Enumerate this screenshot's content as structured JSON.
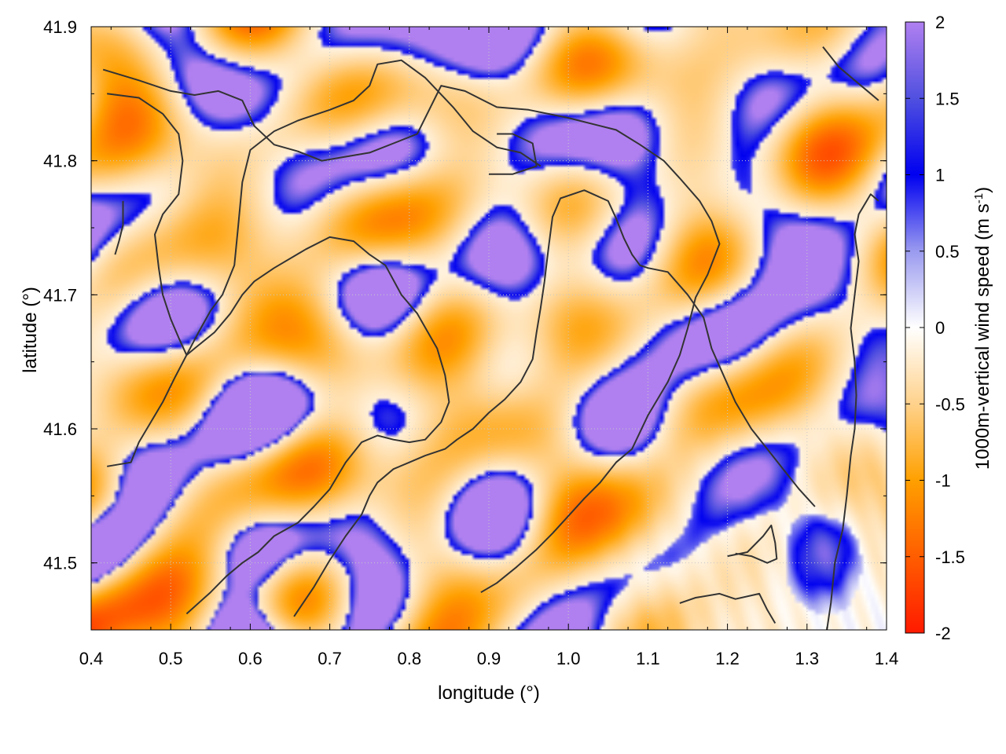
{
  "chart_data": {
    "type": "heatmap",
    "xlabel": "longitude (°)",
    "ylabel": "latitude (°)",
    "colorbar_label": "1000m-vertical wind speed (m s-1)",
    "colorbar_label_parts": {
      "main": "1000m-vertical wind speed (m s",
      "sup": "-1",
      "close": ")"
    },
    "xlim": [
      0.4,
      1.4
    ],
    "ylim": [
      41.45,
      41.9
    ],
    "clim": [
      -2,
      2
    ],
    "x_ticks": [
      "0.4",
      "0.5",
      "0.6",
      "0.7",
      "0.8",
      "0.9",
      "1.0",
      "1.1",
      "1.2",
      "1.3",
      "1.4"
    ],
    "y_ticks": [
      "41.5",
      "41.6",
      "41.7",
      "41.8",
      "41.9"
    ],
    "colorbar_ticks": [
      "-2",
      "-1.5",
      "-1",
      "-0.5",
      "0",
      "0.5",
      "1",
      "1.5",
      "2"
    ],
    "grid": true,
    "colormap": [
      {
        "v": -2.0,
        "c": "#ff1a00"
      },
      {
        "v": -1.0,
        "c": "#ffa000"
      },
      {
        "v": -0.5,
        "c": "#ffd28c"
      },
      {
        "v": 0.0,
        "c": "#ffffff"
      },
      {
        "v": 0.5,
        "c": "#9a9af0"
      },
      {
        "v": 1.0,
        "c": "#0000f0"
      },
      {
        "v": 1.5,
        "c": "#5050e0"
      },
      {
        "v": 2.0,
        "c": "#b080f0"
      }
    ],
    "contour_color": "#333333",
    "contours": [
      [
        [
          0.415,
          41.868
        ],
        [
          0.46,
          41.86
        ],
        [
          0.5,
          41.852
        ],
        [
          0.53,
          41.849
        ],
        [
          0.56,
          41.852
        ],
        [
          0.59,
          41.845
        ],
        [
          0.605,
          41.826
        ],
        [
          0.63,
          41.812
        ],
        [
          0.66,
          41.807
        ],
        [
          0.69,
          41.8
        ],
        [
          0.72,
          41.803
        ],
        [
          0.75,
          41.806
        ],
        [
          0.78,
          41.813
        ],
        [
          0.81,
          41.82
        ],
        [
          0.825,
          41.838
        ],
        [
          0.84,
          41.856
        ],
        [
          0.87,
          41.852
        ],
        [
          0.91,
          41.84
        ],
        [
          0.95,
          41.838
        ],
        [
          1.0,
          41.832
        ],
        [
          1.06,
          41.823
        ],
        [
          1.09,
          41.812
        ],
        [
          1.12,
          41.8
        ],
        [
          1.14,
          41.787
        ],
        [
          1.165,
          41.77
        ],
        [
          1.18,
          41.755
        ],
        [
          1.19,
          41.738
        ],
        [
          1.175,
          41.715
        ],
        [
          1.16,
          41.698
        ],
        [
          1.15,
          41.675
        ],
        [
          1.14,
          41.655
        ],
        [
          1.125,
          41.635
        ],
        [
          1.1,
          41.61
        ],
        [
          1.08,
          41.585
        ],
        [
          1.06,
          41.575
        ],
        [
          1.04,
          41.56
        ],
        [
          1.02,
          41.548
        ],
        [
          1.0,
          41.535
        ],
        [
          0.98,
          41.522
        ],
        [
          0.96,
          41.51
        ],
        [
          0.935,
          41.497
        ],
        [
          0.91,
          41.485
        ],
        [
          0.89,
          41.478
        ]
      ],
      [
        [
          0.42,
          41.85
        ],
        [
          0.46,
          41.847
        ],
        [
          0.49,
          41.835
        ],
        [
          0.51,
          41.82
        ],
        [
          0.515,
          41.8
        ],
        [
          0.51,
          41.775
        ],
        [
          0.49,
          41.76
        ],
        [
          0.48,
          41.745
        ],
        [
          0.485,
          41.72
        ],
        [
          0.49,
          41.7
        ],
        [
          0.5,
          41.682
        ],
        [
          0.51,
          41.668
        ],
        [
          0.52,
          41.655
        ],
        [
          0.53,
          41.66
        ],
        [
          0.555,
          41.672
        ],
        [
          0.575,
          41.686
        ],
        [
          0.59,
          41.7
        ],
        [
          0.605,
          41.71
        ],
        [
          0.63,
          41.72
        ],
        [
          0.67,
          41.734
        ],
        [
          0.7,
          41.743
        ],
        [
          0.73,
          41.74
        ],
        [
          0.75,
          41.73
        ],
        [
          0.77,
          41.722
        ],
        [
          0.79,
          41.7
        ],
        [
          0.81,
          41.686
        ],
        [
          0.835,
          41.66
        ],
        [
          0.845,
          41.64
        ],
        [
          0.85,
          41.62
        ],
        [
          0.84,
          41.605
        ],
        [
          0.82,
          41.592
        ],
        [
          0.8,
          41.59
        ],
        [
          0.78,
          41.592
        ],
        [
          0.76,
          41.595
        ],
        [
          0.74,
          41.59
        ],
        [
          0.72,
          41.575
        ],
        [
          0.7,
          41.555
        ],
        [
          0.68,
          41.542
        ],
        [
          0.66,
          41.53
        ],
        [
          0.63,
          41.52
        ],
        [
          0.61,
          41.508
        ],
        [
          0.59,
          41.5
        ],
        [
          0.57,
          41.49
        ],
        [
          0.55,
          41.478
        ],
        [
          0.52,
          41.462
        ]
      ],
      [
        [
          0.42,
          41.572
        ],
        [
          0.45,
          41.575
        ],
        [
          0.46,
          41.59
        ],
        [
          0.475,
          41.605
        ],
        [
          0.49,
          41.62
        ],
        [
          0.505,
          41.638
        ],
        [
          0.52,
          41.655
        ],
        [
          0.535,
          41.672
        ],
        [
          0.55,
          41.688
        ],
        [
          0.565,
          41.7
        ],
        [
          0.58,
          41.722
        ],
        [
          0.585,
          41.752
        ],
        [
          0.59,
          41.784
        ],
        [
          0.6,
          41.808
        ],
        [
          0.63,
          41.822
        ],
        [
          0.66,
          41.83
        ],
        [
          0.7,
          41.838
        ],
        [
          0.73,
          41.845
        ],
        [
          0.75,
          41.856
        ],
        [
          0.76,
          41.872
        ],
        [
          0.79,
          41.875
        ],
        [
          0.82,
          41.862
        ],
        [
          0.855,
          41.84
        ],
        [
          0.88,
          41.822
        ],
        [
          0.91,
          41.81
        ],
        [
          0.94,
          41.806
        ],
        [
          0.965,
          41.796
        ]
      ],
      [
        [
          0.655,
          41.46
        ],
        [
          0.68,
          41.482
        ],
        [
          0.7,
          41.502
        ],
        [
          0.72,
          41.52
        ],
        [
          0.74,
          41.536
        ],
        [
          0.75,
          41.55
        ],
        [
          0.76,
          41.56
        ],
        [
          0.78,
          41.57
        ],
        [
          0.8,
          41.575
        ],
        [
          0.82,
          41.58
        ],
        [
          0.845,
          41.585
        ],
        [
          0.86,
          41.592
        ],
        [
          0.88,
          41.6
        ],
        [
          0.9,
          41.612
        ],
        [
          0.92,
          41.622
        ],
        [
          0.94,
          41.635
        ],
        [
          0.955,
          41.652
        ],
        [
          0.96,
          41.672
        ],
        [
          0.965,
          41.69
        ],
        [
          0.97,
          41.71
        ],
        [
          0.975,
          41.735
        ],
        [
          0.98,
          41.758
        ],
        [
          0.99,
          41.772
        ],
        [
          1.02,
          41.778
        ],
        [
          1.05,
          41.77
        ],
        [
          1.06,
          41.757
        ],
        [
          1.07,
          41.742
        ],
        [
          1.08,
          41.73
        ],
        [
          1.09,
          41.722
        ],
        [
          1.1,
          41.72
        ],
        [
          1.125,
          41.717
        ],
        [
          1.15,
          41.7
        ],
        [
          1.17,
          41.683
        ],
        [
          1.18,
          41.66
        ],
        [
          1.195,
          41.64
        ],
        [
          1.21,
          41.62
        ],
        [
          1.23,
          41.6
        ],
        [
          1.25,
          41.585
        ],
        [
          1.27,
          41.57
        ],
        [
          1.29,
          41.555
        ],
        [
          1.31,
          41.542
        ]
      ],
      [
        [
          0.9,
          41.79
        ],
        [
          0.93,
          41.79
        ],
        [
          0.96,
          41.796
        ],
        [
          0.955,
          41.813
        ],
        [
          0.93,
          41.82
        ],
        [
          0.91,
          41.82
        ]
      ],
      [
        [
          1.14,
          41.47
        ],
        [
          1.16,
          41.474
        ],
        [
          1.19,
          41.477
        ],
        [
          1.21,
          41.473
        ],
        [
          1.24,
          41.477
        ],
        [
          1.25,
          41.465
        ],
        [
          1.26,
          41.455
        ]
      ],
      [
        [
          1.2,
          41.505
        ],
        [
          1.225,
          41.508
        ],
        [
          1.245,
          41.52
        ],
        [
          1.255,
          41.528
        ],
        [
          1.26,
          41.515
        ],
        [
          1.262,
          41.503
        ],
        [
          1.25,
          41.5
        ],
        [
          1.23,
          41.505
        ],
        [
          1.21,
          41.507
        ]
      ],
      [
        [
          1.325,
          41.45
        ],
        [
          1.33,
          41.47
        ],
        [
          1.335,
          41.5
        ],
        [
          1.345,
          41.525
        ],
        [
          1.35,
          41.55
        ],
        [
          1.355,
          41.58
        ],
        [
          1.36,
          41.6
        ],
        [
          1.362,
          41.625
        ],
        [
          1.36,
          41.65
        ],
        [
          1.355,
          41.675
        ],
        [
          1.36,
          41.7
        ],
        [
          1.365,
          41.725
        ],
        [
          1.36,
          41.745
        ],
        [
          1.365,
          41.76
        ],
        [
          1.38,
          41.775
        ],
        [
          1.39,
          41.77
        ]
      ],
      [
        [
          1.32,
          41.885
        ],
        [
          1.34,
          41.87
        ],
        [
          1.36,
          41.86
        ],
        [
          1.38,
          41.85
        ],
        [
          1.39,
          41.845
        ]
      ],
      [
        [
          0.44,
          41.77
        ],
        [
          0.44,
          41.752
        ],
        [
          0.435,
          41.74
        ],
        [
          0.43,
          41.73
        ]
      ]
    ]
  }
}
